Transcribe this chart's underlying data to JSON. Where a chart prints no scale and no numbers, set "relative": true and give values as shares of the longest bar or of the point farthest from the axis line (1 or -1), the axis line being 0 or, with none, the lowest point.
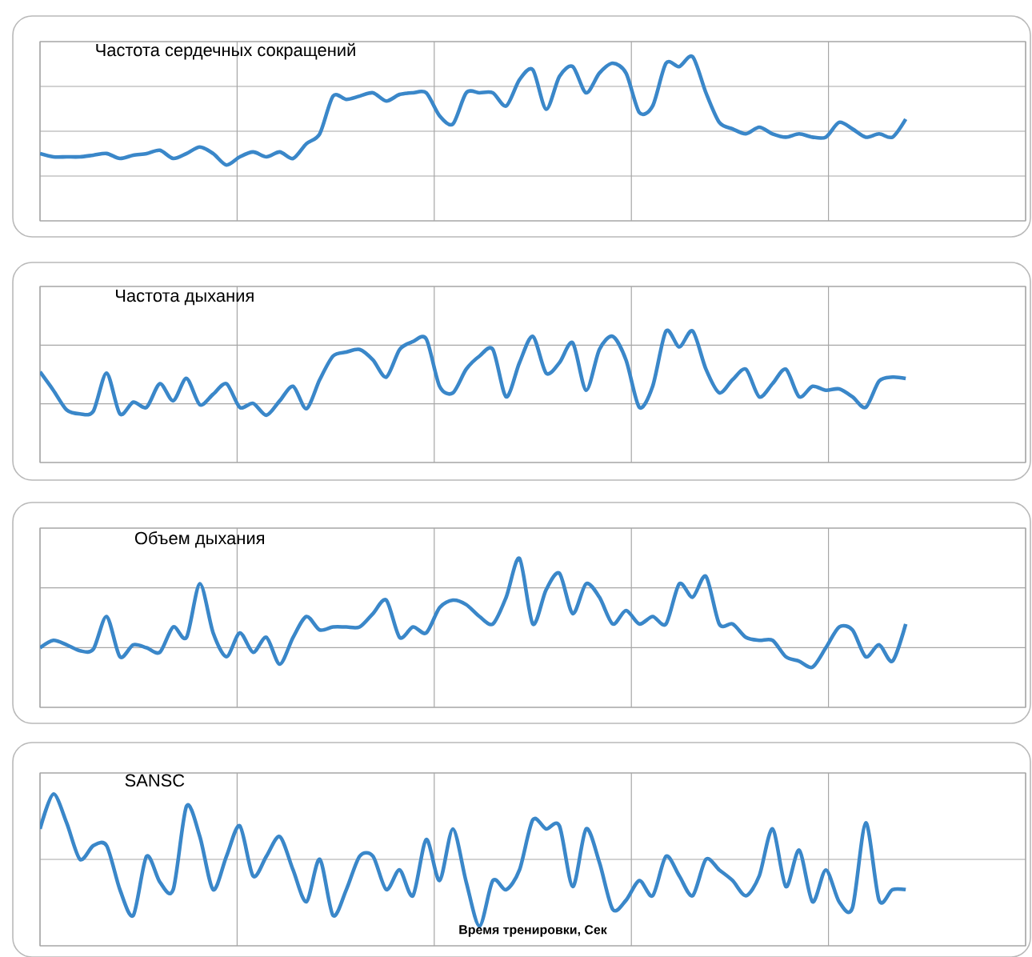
{
  "chart_data": [
    {
      "type": "line",
      "title": "Частота сердечных сокращений",
      "relative": true,
      "grid": true,
      "tick_labels": false,
      "color": "#3a87c9",
      "categories": [
        null,
        null,
        null,
        null,
        null,
        null,
        null,
        null,
        null,
        null,
        null,
        null,
        null,
        null,
        null,
        null,
        null,
        null,
        null,
        null,
        null,
        null,
        null,
        null,
        null,
        null,
        null,
        null,
        null,
        null,
        null,
        null,
        null,
        null,
        null,
        null,
        null,
        null,
        null,
        null,
        null,
        null,
        null,
        null,
        null,
        null,
        null,
        null,
        null,
        null,
        null,
        null,
        null,
        null,
        null,
        null,
        null,
        null,
        null,
        null,
        null,
        null,
        null,
        null,
        null,
        null
      ],
      "values": [
        0.41,
        0.39,
        0.39,
        0.39,
        0.4,
        0.41,
        0.38,
        0.4,
        0.41,
        0.43,
        0.38,
        0.41,
        0.45,
        0.41,
        0.34,
        0.39,
        0.42,
        0.39,
        0.42,
        0.38,
        0.47,
        0.53,
        0.76,
        0.74,
        0.76,
        0.78,
        0.73,
        0.77,
        0.78,
        0.78,
        0.64,
        0.59,
        0.78,
        0.78,
        0.78,
        0.7,
        0.86,
        0.92,
        0.68,
        0.88,
        0.94,
        0.78,
        0.9,
        0.96,
        0.9,
        0.66,
        0.7,
        0.96,
        0.94,
        1.0,
        0.78,
        0.6,
        0.56,
        0.53,
        0.57,
        0.53,
        0.51,
        0.53,
        0.51,
        0.51,
        0.6,
        0.56,
        0.51,
        0.53,
        0.51,
        0.62
      ]
    },
    {
      "type": "line",
      "title": "Частота дыхания",
      "relative": true,
      "grid": true,
      "tick_labels": false,
      "color": "#3a87c9",
      "categories": [
        null,
        null,
        null,
        null,
        null,
        null,
        null,
        null,
        null,
        null,
        null,
        null,
        null,
        null,
        null,
        null,
        null,
        null,
        null,
        null,
        null,
        null,
        null,
        null,
        null,
        null,
        null,
        null,
        null,
        null,
        null,
        null,
        null,
        null,
        null,
        null,
        null,
        null,
        null,
        null,
        null,
        null,
        null,
        null,
        null,
        null,
        null,
        null,
        null,
        null,
        null,
        null,
        null,
        null,
        null,
        null,
        null,
        null,
        null,
        null,
        null,
        null,
        null,
        null,
        null,
        null
      ],
      "values": [
        0.69,
        0.55,
        0.4,
        0.37,
        0.39,
        0.68,
        0.37,
        0.46,
        0.42,
        0.6,
        0.47,
        0.64,
        0.44,
        0.52,
        0.6,
        0.42,
        0.45,
        0.36,
        0.47,
        0.58,
        0.41,
        0.63,
        0.81,
        0.84,
        0.86,
        0.78,
        0.65,
        0.86,
        0.92,
        0.94,
        0.58,
        0.53,
        0.71,
        0.81,
        0.86,
        0.5,
        0.76,
        0.96,
        0.68,
        0.76,
        0.91,
        0.55,
        0.86,
        0.96,
        0.78,
        0.42,
        0.58,
        1.0,
        0.88,
        1.0,
        0.71,
        0.53,
        0.63,
        0.71,
        0.5,
        0.6,
        0.71,
        0.5,
        0.58,
        0.55,
        0.56,
        0.5,
        0.42,
        0.62,
        0.65,
        0.64
      ]
    },
    {
      "type": "line",
      "title": "Объем дыхания",
      "relative": true,
      "grid": true,
      "tick_labels": false,
      "color": "#3a87c9",
      "categories": [
        null,
        null,
        null,
        null,
        null,
        null,
        null,
        null,
        null,
        null,
        null,
        null,
        null,
        null,
        null,
        null,
        null,
        null,
        null,
        null,
        null,
        null,
        null,
        null,
        null,
        null,
        null,
        null,
        null,
        null,
        null,
        null,
        null,
        null,
        null,
        null,
        null,
        null,
        null,
        null,
        null,
        null,
        null,
        null,
        null,
        null,
        null,
        null,
        null,
        null,
        null,
        null,
        null,
        null,
        null,
        null,
        null,
        null,
        null,
        null,
        null,
        null,
        null,
        null,
        null,
        null
      ],
      "values": [
        0.4,
        0.45,
        0.42,
        0.38,
        0.39,
        0.61,
        0.34,
        0.42,
        0.4,
        0.37,
        0.54,
        0.47,
        0.83,
        0.5,
        0.34,
        0.5,
        0.37,
        0.47,
        0.29,
        0.47,
        0.61,
        0.52,
        0.54,
        0.54,
        0.54,
        0.63,
        0.72,
        0.47,
        0.54,
        0.5,
        0.67,
        0.72,
        0.69,
        0.61,
        0.56,
        0.74,
        1.0,
        0.56,
        0.79,
        0.9,
        0.63,
        0.83,
        0.74,
        0.56,
        0.65,
        0.56,
        0.61,
        0.56,
        0.83,
        0.74,
        0.88,
        0.56,
        0.56,
        0.47,
        0.45,
        0.45,
        0.34,
        0.31,
        0.27,
        0.4,
        0.54,
        0.52,
        0.34,
        0.42,
        0.31,
        0.56
      ]
    },
    {
      "type": "line",
      "title": "SANSC",
      "xlabel": "Время тренировки, Сек",
      "relative": true,
      "grid": true,
      "tick_labels": false,
      "color": "#3a87c9",
      "categories": [
        null,
        null,
        null,
        null,
        null,
        null,
        null,
        null,
        null,
        null,
        null,
        null,
        null,
        null,
        null,
        null,
        null,
        null,
        null,
        null,
        null,
        null,
        null,
        null,
        null,
        null,
        null,
        null,
        null,
        null,
        null,
        null,
        null,
        null,
        null,
        null,
        null,
        null,
        null,
        null,
        null,
        null,
        null,
        null,
        null,
        null,
        null,
        null,
        null,
        null,
        null,
        null,
        null,
        null,
        null,
        null,
        null,
        null,
        null,
        null,
        null,
        null,
        null,
        null,
        null,
        null
      ],
      "values": [
        0.77,
        1.0,
        0.81,
        0.57,
        0.66,
        0.66,
        0.37,
        0.2,
        0.59,
        0.42,
        0.37,
        0.92,
        0.72,
        0.37,
        0.59,
        0.79,
        0.46,
        0.59,
        0.72,
        0.5,
        0.29,
        0.57,
        0.2,
        0.37,
        0.59,
        0.59,
        0.37,
        0.5,
        0.33,
        0.7,
        0.43,
        0.77,
        0.42,
        0.13,
        0.43,
        0.37,
        0.5,
        0.83,
        0.77,
        0.79,
        0.39,
        0.77,
        0.55,
        0.24,
        0.3,
        0.43,
        0.33,
        0.59,
        0.46,
        0.33,
        0.57,
        0.5,
        0.43,
        0.33,
        0.46,
        0.77,
        0.39,
        0.63,
        0.29,
        0.5,
        0.29,
        0.25,
        0.81,
        0.3,
        0.37,
        0.37
      ]
    }
  ]
}
